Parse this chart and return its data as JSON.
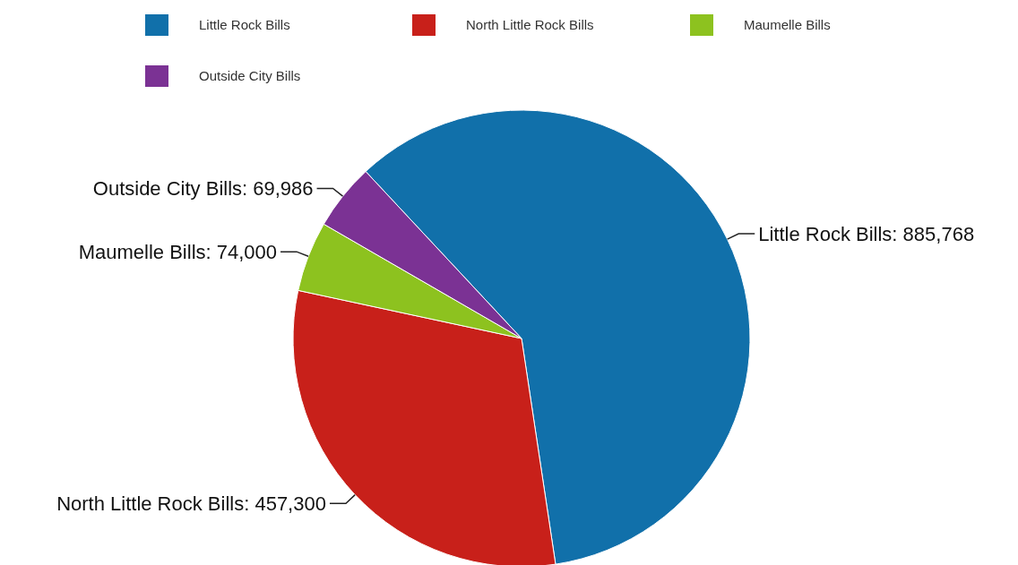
{
  "chart_data": {
    "type": "pie",
    "categories": [
      "Little Rock Bills",
      "North Little Rock Bills",
      "Maumelle Bills",
      "Outside City Bills"
    ],
    "values": [
      885768,
      457300,
      74000,
      69986
    ],
    "colors": [
      "#1170aa",
      "#c8201a",
      "#8dc21f",
      "#7b3294"
    ],
    "value_labels": [
      "Little Rock Bills: 885,768",
      "North Little Rock Bills: 457,300",
      "Maumelle Bills: 74,000",
      "Outside City Bills: 69,986"
    ],
    "legend": "top"
  }
}
